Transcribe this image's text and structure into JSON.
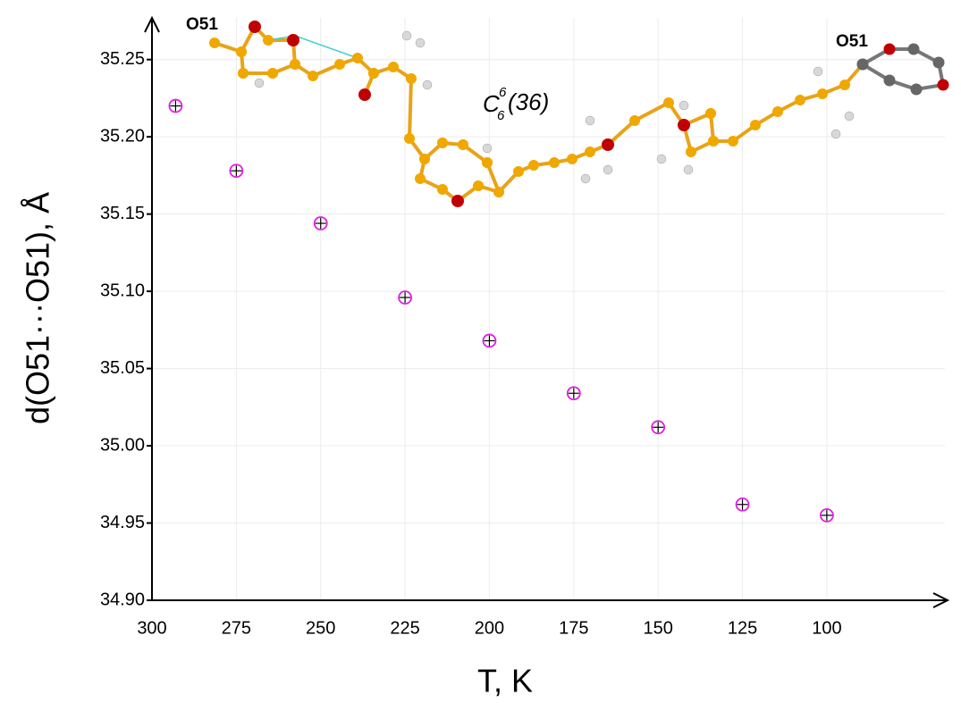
{
  "chart_data": {
    "type": "scatter",
    "x_label": "T, K",
    "y_label": "d(O51···O51), Å",
    "annotations": [
      "O51",
      "O51"
    ],
    "graph_set": {
      "symbol": "C",
      "superscript": "6",
      "subscript": "6",
      "size": "(36)"
    },
    "x": [
      293,
      275,
      250,
      225,
      200,
      175,
      150,
      125,
      100
    ],
    "series": [
      {
        "color": "#e020e0",
        "values": [
          35.22,
          35.178,
          35.144,
          35.096,
          35.068,
          35.034,
          35.012,
          34.962,
          34.955
        ]
      }
    ],
    "xlim": [
      300,
      65
    ],
    "xticks": [
      300,
      275,
      250,
      225,
      200,
      175,
      150,
      125,
      100
    ],
    "ylim": [
      34.9,
      35.277
    ],
    "yticks": [
      {
        "value": 34.9,
        "label": "34.90"
      },
      {
        "value": 34.95,
        "label": "34.95"
      },
      {
        "value": 35.0,
        "label": "35.00"
      },
      {
        "value": 35.05,
        "label": "35.05"
      },
      {
        "value": 35.1,
        "label": "35.10"
      },
      {
        "value": 35.15,
        "label": "35.15"
      },
      {
        "value": 35.2,
        "label": "35.20"
      },
      {
        "value": 35.25,
        "label": "35.25"
      }
    ],
    "grid": true
  }
}
